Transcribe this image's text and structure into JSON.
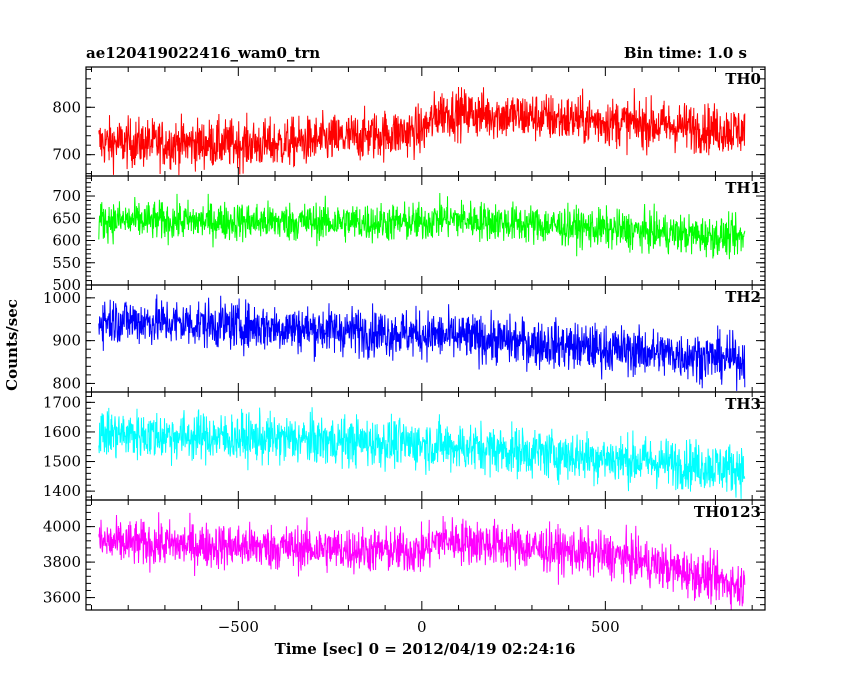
{
  "header": {
    "title": "ae120419022416_wam0_trn",
    "bin_time": "Bin time: 1.0 s"
  },
  "axes": {
    "ylabel": "Counts/sec",
    "xlabel": "Time [sec] 0 = 2012/04/19 02:24:16",
    "xlim": [
      -915,
      935
    ],
    "xticks": [
      -500,
      0,
      500
    ],
    "xticklabels": [
      "−500",
      "0",
      "500"
    ]
  },
  "chart_data": [
    {
      "type": "line",
      "name": "TH0",
      "color": "#ff0000",
      "ylim": [
        655,
        885
      ],
      "yticks": [
        700,
        800
      ],
      "x_range": [
        -880,
        880
      ],
      "trend": [
        [
          -880,
          725
        ],
        [
          -400,
          722
        ],
        [
          0,
          750
        ],
        [
          50,
          790
        ],
        [
          300,
          780
        ],
        [
          880,
          750
        ]
      ],
      "noise": 26
    },
    {
      "type": "line",
      "name": "TH1",
      "color": "#00ff00",
      "ylim": [
        500,
        745
      ],
      "yticks": [
        500,
        550,
        600,
        650,
        700
      ],
      "x_range": [
        -880,
        880
      ],
      "trend": [
        [
          -880,
          645
        ],
        [
          0,
          640
        ],
        [
          50,
          650
        ],
        [
          880,
          605
        ]
      ],
      "noise": 22
    },
    {
      "type": "line",
      "name": "TH2",
      "color": "#0000ff",
      "ylim": [
        780,
        1030
      ],
      "yticks": [
        800,
        900,
        1000
      ],
      "x_range": [
        -880,
        880
      ],
      "trend": [
        [
          -880,
          950
        ],
        [
          0,
          915
        ],
        [
          880,
          855
        ]
      ],
      "noise": 28
    },
    {
      "type": "line",
      "name": "TH3",
      "color": "#00ffff",
      "ylim": [
        1370,
        1735
      ],
      "yticks": [
        1400,
        1500,
        1600,
        1700
      ],
      "x_range": [
        -880,
        880
      ],
      "trend": [
        [
          -880,
          1595
        ],
        [
          0,
          1560
        ],
        [
          880,
          1475
        ]
      ],
      "noise": 42
    },
    {
      "type": "line",
      "name": "TH0123",
      "color": "#ff00ff",
      "ylim": [
        3530,
        4150
      ],
      "yticks": [
        3600,
        3800,
        4000
      ],
      "x_range": [
        -880,
        880
      ],
      "trend": [
        [
          -880,
          3910
        ],
        [
          0,
          3860
        ],
        [
          50,
          3930
        ],
        [
          550,
          3830
        ],
        [
          880,
          3660
        ]
      ],
      "noise": 65
    }
  ]
}
